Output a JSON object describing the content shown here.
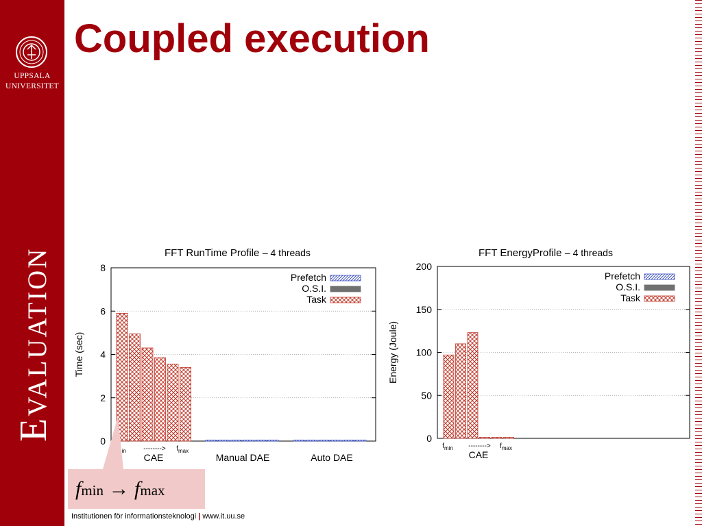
{
  "slide": {
    "title": "Coupled execution",
    "section": "Evaluation",
    "university_lines": [
      "UPPSALA",
      "UNIVERSITET"
    ],
    "footer_left": "Institutionen för informationsteknologi",
    "footer_sep": "|",
    "footer_right": "www.it.uu.se",
    "callout": {
      "f": "f",
      "min": "min",
      "arrow": "→",
      "max": "max"
    },
    "colors": {
      "brand": "#a0000a",
      "task": "#c0392b",
      "prefetch": "#3a4fbf",
      "osi": "#707070",
      "callout_bg": "#f2c9c9"
    }
  },
  "chart_data": [
    {
      "type": "bar",
      "title": "FFT RunTime Profile",
      "subtitle": "– 4 threads",
      "ylabel": "Time (sec)",
      "ylim": [
        0,
        8
      ],
      "yticks": [
        0,
        2,
        4,
        6,
        8
      ],
      "groups": [
        "CAE",
        "Manual DAE",
        "Auto DAE"
      ],
      "group_sublabels": {
        "min": "f",
        "min_sub": "min",
        "arrow": "-------->",
        "max": "f",
        "max_sub": "max"
      },
      "legend": [
        "Prefetch",
        "O.S.I.",
        "Task"
      ],
      "legend_position": "top-right",
      "series": [
        {
          "name": "Task",
          "group": "CAE",
          "values": [
            5.9,
            4.95,
            4.3,
            3.85,
            3.55,
            3.4
          ]
        },
        {
          "name": "Prefetch",
          "group": "Manual DAE",
          "values": [
            0.05,
            0.05,
            0.05,
            0.05,
            0.05,
            0.05
          ]
        },
        {
          "name": "Prefetch",
          "group": "Auto DAE",
          "values": [
            0.05,
            0.05,
            0.05,
            0.05,
            0.05,
            0.05
          ]
        }
      ]
    },
    {
      "type": "bar",
      "title": "FFT EnergyProfile",
      "subtitle": "– 4 threads",
      "ylabel": "Energy (Joule)",
      "ylim": [
        0,
        200
      ],
      "yticks": [
        0,
        50,
        100,
        150,
        200
      ],
      "groups": [
        "CAE"
      ],
      "group_sublabels": {
        "min": "f",
        "min_sub": "min",
        "arrow": "-------->",
        "max": "f",
        "max_sub": "max"
      },
      "legend": [
        "Prefetch",
        "O.S.I.",
        "Task"
      ],
      "legend_position": "top-right",
      "series": [
        {
          "name": "Task",
          "group": "CAE",
          "values": [
            97,
            110,
            123,
            0.5,
            0.5,
            0.5
          ]
        }
      ]
    }
  ]
}
